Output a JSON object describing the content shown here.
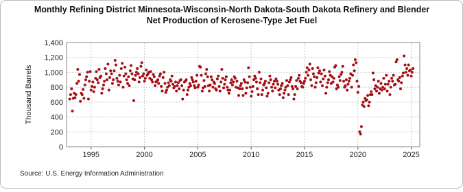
{
  "chart_data": {
    "type": "scatter",
    "title": "Monthly Refining District Minnesota-Wisconsin-North Dakota-South Dakota Refinery and Blender Net Production of Kerosene-Type Jet Fuel",
    "y_label": "Thousand Barrels",
    "source": "Source: U.S. Energy Information Administration",
    "color": "#a50f15",
    "grid": true,
    "xlim": [
      1992.7,
      2025.8
    ],
    "xticks": [
      1995,
      2000,
      2005,
      2010,
      2015,
      2020,
      2025
    ],
    "ylim": [
      0,
      1400
    ],
    "yticks": [
      {
        "value": 0,
        "label": "0"
      },
      {
        "value": 200,
        "label": "200"
      },
      {
        "value": 400,
        "label": "400"
      },
      {
        "value": 600,
        "label": "600"
      },
      {
        "value": 800,
        "label": "800"
      },
      {
        "value": 1000,
        "label": "1,000"
      },
      {
        "value": 1200,
        "label": "1,200"
      },
      {
        "value": 1400,
        "label": "1,400"
      }
    ],
    "x": [
      1993,
      1993.08,
      1993.17,
      1993.25,
      1993.33,
      1993.42,
      1993.5,
      1993.58,
      1993.67,
      1993.75,
      1993.83,
      1993.92,
      1994,
      1994.08,
      1994.17,
      1994.25,
      1994.33,
      1994.42,
      1994.5,
      1994.58,
      1994.67,
      1994.75,
      1994.83,
      1994.92,
      1995,
      1995.08,
      1995.17,
      1995.25,
      1995.33,
      1995.42,
      1995.5,
      1995.58,
      1995.67,
      1995.75,
      1995.83,
      1995.92,
      1996,
      1996.08,
      1996.17,
      1996.25,
      1996.33,
      1996.42,
      1996.5,
      1996.58,
      1996.67,
      1996.75,
      1996.83,
      1996.92,
      1997,
      1997.08,
      1997.17,
      1997.25,
      1997.33,
      1997.42,
      1997.5,
      1997.58,
      1997.67,
      1997.75,
      1997.83,
      1997.92,
      1998,
      1998.08,
      1998.17,
      1998.25,
      1998.33,
      1998.42,
      1998.5,
      1998.58,
      1998.67,
      1998.75,
      1998.83,
      1998.92,
      1999,
      1999.08,
      1999.17,
      1999.25,
      1999.33,
      1999.42,
      1999.5,
      1999.58,
      1999.67,
      1999.75,
      1999.83,
      1999.92,
      2000,
      2000.08,
      2000.17,
      2000.25,
      2000.33,
      2000.42,
      2000.5,
      2000.58,
      2000.67,
      2000.75,
      2000.83,
      2000.92,
      2001,
      2001.08,
      2001.17,
      2001.25,
      2001.33,
      2001.42,
      2001.5,
      2001.58,
      2001.67,
      2001.75,
      2001.83,
      2001.92,
      2002,
      2002.08,
      2002.17,
      2002.25,
      2002.33,
      2002.42,
      2002.5,
      2002.58,
      2002.67,
      2002.75,
      2002.83,
      2002.92,
      2003,
      2003.08,
      2003.17,
      2003.25,
      2003.33,
      2003.42,
      2003.5,
      2003.58,
      2003.67,
      2003.75,
      2003.83,
      2003.92,
      2004,
      2004.08,
      2004.17,
      2004.25,
      2004.33,
      2004.42,
      2004.5,
      2004.58,
      2004.67,
      2004.75,
      2004.83,
      2004.92,
      2005,
      2005.08,
      2005.17,
      2005.25,
      2005.33,
      2005.42,
      2005.5,
      2005.58,
      2005.67,
      2005.75,
      2005.83,
      2005.92,
      2006,
      2006.08,
      2006.17,
      2006.25,
      2006.33,
      2006.42,
      2006.5,
      2006.58,
      2006.67,
      2006.75,
      2006.83,
      2006.92,
      2007,
      2007.08,
      2007.17,
      2007.25,
      2007.33,
      2007.42,
      2007.5,
      2007.58,
      2007.67,
      2007.75,
      2007.83,
      2007.92,
      2008,
      2008.08,
      2008.17,
      2008.25,
      2008.33,
      2008.42,
      2008.5,
      2008.58,
      2008.67,
      2008.75,
      2008.83,
      2008.92,
      2009,
      2009.08,
      2009.17,
      2009.25,
      2009.33,
      2009.42,
      2009.5,
      2009.58,
      2009.67,
      2009.75,
      2009.83,
      2009.92,
      2010,
      2010.08,
      2010.17,
      2010.25,
      2010.33,
      2010.42,
      2010.5,
      2010.58,
      2010.67,
      2010.75,
      2010.83,
      2010.92,
      2011,
      2011.08,
      2011.17,
      2011.25,
      2011.33,
      2011.42,
      2011.5,
      2011.58,
      2011.67,
      2011.75,
      2011.83,
      2011.92,
      2012,
      2012.08,
      2012.17,
      2012.25,
      2012.33,
      2012.42,
      2012.5,
      2012.58,
      2012.67,
      2012.75,
      2012.83,
      2012.92,
      2013,
      2013.08,
      2013.17,
      2013.25,
      2013.33,
      2013.42,
      2013.5,
      2013.58,
      2013.67,
      2013.75,
      2013.83,
      2013.92,
      2014,
      2014.08,
      2014.17,
      2014.25,
      2014.33,
      2014.42,
      2014.5,
      2014.58,
      2014.67,
      2014.75,
      2014.83,
      2014.92,
      2015,
      2015.08,
      2015.17,
      2015.25,
      2015.33,
      2015.42,
      2015.5,
      2015.58,
      2015.67,
      2015.75,
      2015.83,
      2015.92,
      2016,
      2016.08,
      2016.17,
      2016.25,
      2016.33,
      2016.42,
      2016.5,
      2016.58,
      2016.67,
      2016.75,
      2016.83,
      2016.92,
      2017,
      2017.08,
      2017.17,
      2017.25,
      2017.33,
      2017.42,
      2017.5,
      2017.58,
      2017.67,
      2017.75,
      2017.83,
      2017.92,
      2018,
      2018.08,
      2018.17,
      2018.25,
      2018.33,
      2018.42,
      2018.5,
      2018.58,
      2018.67,
      2018.75,
      2018.83,
      2018.92,
      2019,
      2019.08,
      2019.17,
      2019.25,
      2019.33,
      2019.42,
      2019.5,
      2019.58,
      2019.67,
      2019.75,
      2019.83,
      2019.92,
      2020,
      2020.08,
      2020.17,
      2020.25,
      2020.33,
      2020.42,
      2020.5,
      2020.58,
      2020.67,
      2020.75,
      2020.83,
      2020.92,
      2021,
      2021.08,
      2021.17,
      2021.25,
      2021.33,
      2021.42,
      2021.5,
      2021.58,
      2021.67,
      2021.75,
      2021.83,
      2021.92,
      2022,
      2022.08,
      2022.17,
      2022.25,
      2022.33,
      2022.42,
      2022.5,
      2022.58,
      2022.67,
      2022.75,
      2022.83,
      2022.92,
      2023,
      2023.08,
      2023.17,
      2023.25,
      2023.33,
      2023.42,
      2023.5,
      2023.58,
      2023.67,
      2023.75,
      2023.83,
      2023.92,
      2024,
      2024.08,
      2024.17,
      2024.25,
      2024.33,
      2024.42,
      2024.5,
      2024.58,
      2024.67,
      2024.75,
      2024.83,
      2024.92,
      2025,
      2025.08,
      2025.17
    ],
    "values": [
      640,
      700,
      780,
      480,
      650,
      720,
      660,
      700,
      850,
      1040,
      880,
      970,
      610,
      720,
      700,
      770,
      650,
      830,
      900,
      940,
      1000,
      640,
      880,
      1010,
      760,
      810,
      870,
      740,
      800,
      920,
      1010,
      900,
      860,
      1040,
      930,
      950,
      720,
      780,
      830,
      880,
      1050,
      980,
      900,
      1110,
      760,
      930,
      1020,
      980,
      850,
      900,
      1020,
      1160,
      1100,
      920,
      880,
      830,
      960,
      870,
      1050,
      1120,
      800,
      950,
      1070,
      980,
      900,
      850,
      940,
      820,
      1020,
      1090,
      980,
      910,
      620,
      900,
      960,
      1000,
      1050,
      980,
      870,
      930,
      1080,
      1130,
      950,
      980,
      880,
      920,
      1030,
      960,
      980,
      1000,
      920,
      1010,
      900,
      870,
      970,
      940,
      820,
      870,
      880,
      900,
      850,
      950,
      980,
      810,
      750,
      930,
      1000,
      850,
      730,
      760,
      800,
      860,
      820,
      900,
      880,
      950,
      840,
      790,
      810,
      870,
      750,
      820,
      860,
      780,
      890,
      900,
      820,
      640,
      760,
      870,
      880,
      900,
      700,
      760,
      800,
      850,
      820,
      930,
      900,
      870,
      820,
      790,
      880,
      960,
      800,
      830,
      1080,
      1070,
      960,
      750,
      790,
      890,
      810,
      980,
      1040,
      940,
      820,
      750,
      830,
      940,
      900,
      800,
      870,
      850,
      780,
      760,
      910,
      950,
      810,
      750,
      870,
      1040,
      920,
      790,
      840,
      900,
      940,
      800,
      760,
      720,
      760,
      860,
      900,
      830,
      870,
      940,
      920,
      800,
      880,
      790,
      690,
      780,
      820,
      850,
      780,
      690,
      900,
      870,
      720,
      790,
      860,
      1060,
      940,
      800,
      680,
      740,
      810,
      900,
      950,
      920,
      870,
      780,
      700,
      1000,
      860,
      910,
      700,
      760,
      830,
      850,
      880,
      790,
      680,
      720,
      860,
      950,
      900,
      800,
      750,
      840,
      880,
      790,
      910,
      880,
      840,
      760,
      700,
      780,
      820,
      850,
      660,
      720,
      760,
      800,
      890,
      820,
      700,
      870,
      900,
      930,
      810,
      780,
      640,
      700,
      810,
      890,
      780,
      920,
      960,
      880,
      860,
      810,
      800,
      850,
      880,
      920,
      1000,
      1060,
      960,
      1030,
      1110,
      900,
      820,
      1050,
      980,
      940,
      800,
      860,
      930,
      1060,
      990,
      1020,
      870,
      980,
      820,
      910,
      1030,
      950,
      720,
      800,
      860,
      900,
      1010,
      960,
      850,
      940,
      870,
      920,
      1070,
      1090,
      780,
      830,
      800,
      940,
      890,
      970,
      1000,
      1080,
      880,
      800,
      820,
      900,
      760,
      840,
      880,
      920,
      980,
      800,
      960,
      1100,
      1020,
      1170,
      1130,
      880,
      730,
      810,
      200,
      170,
      270,
      560,
      600,
      540,
      650,
      620,
      630,
      690,
      550,
      600,
      700,
      740,
      700,
      990,
      900,
      780,
      820,
      750,
      800,
      880,
      720,
      780,
      850,
      760,
      800,
      920,
      780,
      840,
      960,
      750,
      840,
      880,
      700,
      800,
      920,
      880,
      960,
      830,
      840,
      1140,
      1170,
      900,
      880,
      930,
      780,
      860,
      950,
      990,
      1220,
      1100,
      1000,
      1050,
      960,
      1100,
      1020,
      1030,
      950,
      1000,
      1050
    ]
  }
}
